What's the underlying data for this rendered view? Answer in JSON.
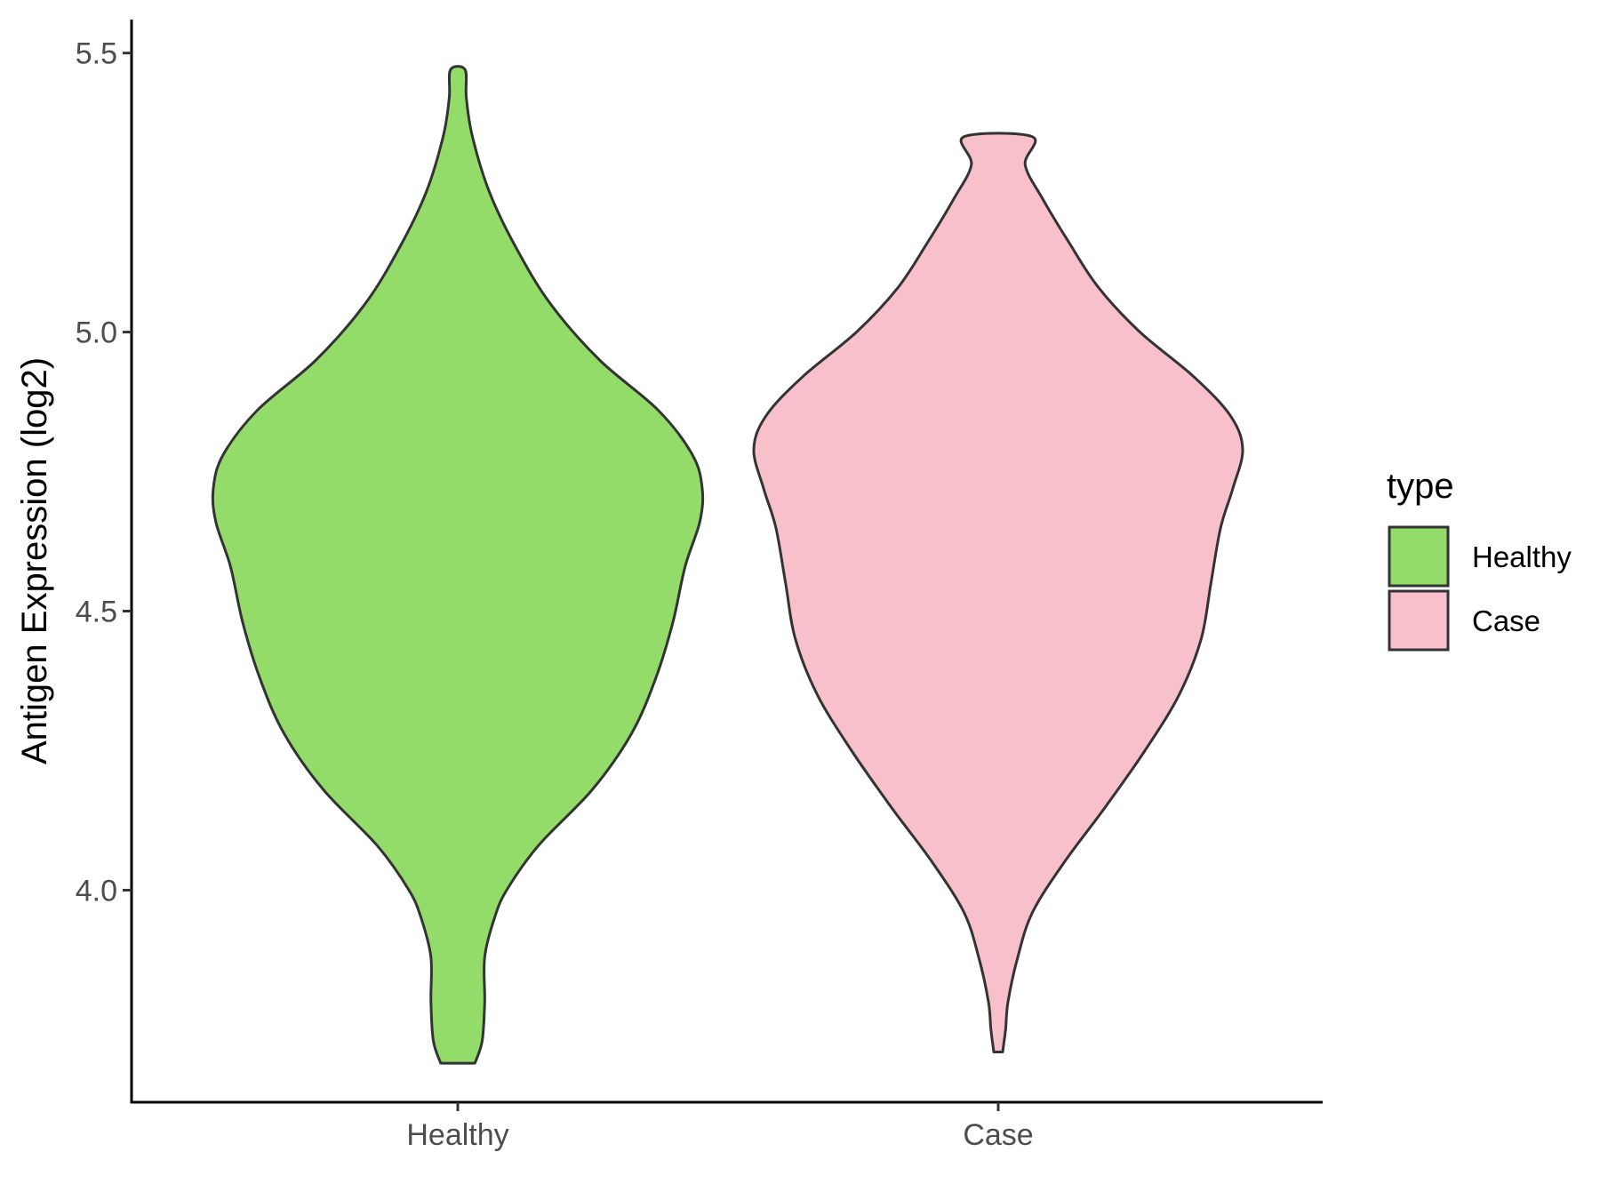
{
  "chart_data": {
    "type": "violin",
    "title": "",
    "xlabel": "",
    "ylabel": "Antigen Expression (log2)",
    "ylim": [
      3.62,
      5.56
    ],
    "yticks": [
      "4.0",
      "4.5",
      "5.0",
      "5.5"
    ],
    "categories": [
      "Healthy",
      "Case"
    ],
    "legend": {
      "title": "type",
      "position": "right",
      "entries": [
        "Healthy",
        "Case"
      ]
    },
    "colors": {
      "Healthy": "#93DC6A",
      "Case": "#F8C0CB",
      "outline": "#333333"
    },
    "series": [
      {
        "name": "Healthy",
        "min": 3.69,
        "max": 5.47,
        "density_profile": [
          [
            3.69,
            0.07
          ],
          [
            3.73,
            0.1
          ],
          [
            3.8,
            0.11
          ],
          [
            3.88,
            0.11
          ],
          [
            3.95,
            0.15
          ],
          [
            4.0,
            0.2
          ],
          [
            4.08,
            0.33
          ],
          [
            4.18,
            0.55
          ],
          [
            4.28,
            0.71
          ],
          [
            4.38,
            0.81
          ],
          [
            4.48,
            0.88
          ],
          [
            4.58,
            0.93
          ],
          [
            4.66,
            0.99
          ],
          [
            4.72,
            1.0
          ],
          [
            4.78,
            0.96
          ],
          [
            4.86,
            0.82
          ],
          [
            4.95,
            0.58
          ],
          [
            5.05,
            0.38
          ],
          [
            5.15,
            0.24
          ],
          [
            5.25,
            0.13
          ],
          [
            5.35,
            0.06
          ],
          [
            5.42,
            0.035
          ],
          [
            5.47,
            0.03
          ]
        ]
      },
      {
        "name": "Case",
        "min": 3.71,
        "max": 5.35,
        "density_profile": [
          [
            3.71,
            0.018
          ],
          [
            3.75,
            0.03
          ],
          [
            3.8,
            0.04
          ],
          [
            3.88,
            0.08
          ],
          [
            3.96,
            0.14
          ],
          [
            4.05,
            0.27
          ],
          [
            4.15,
            0.44
          ],
          [
            4.25,
            0.6
          ],
          [
            4.35,
            0.74
          ],
          [
            4.45,
            0.83
          ],
          [
            4.55,
            0.87
          ],
          [
            4.65,
            0.91
          ],
          [
            4.72,
            0.96
          ],
          [
            4.79,
            1.0
          ],
          [
            4.85,
            0.95
          ],
          [
            4.92,
            0.8
          ],
          [
            5.0,
            0.58
          ],
          [
            5.08,
            0.41
          ],
          [
            5.16,
            0.29
          ],
          [
            5.24,
            0.18
          ],
          [
            5.3,
            0.11
          ],
          [
            5.35,
            0.14
          ]
        ]
      }
    ]
  }
}
